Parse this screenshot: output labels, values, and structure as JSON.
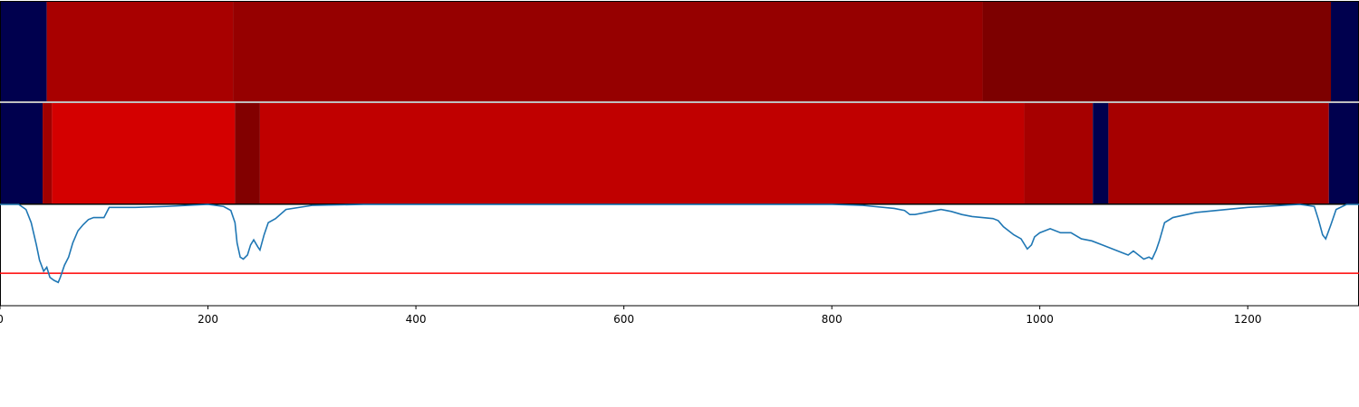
{
  "chart_data": {
    "type": "heatmap",
    "xlim": [
      0,
      1307
    ],
    "x_ticks": [
      "0",
      "200",
      "400",
      "600",
      "800",
      "1000",
      "1200"
    ],
    "x_tick_values": [
      0,
      200,
      400,
      600,
      800,
      1000,
      1200
    ],
    "colors": {
      "background_segment": "#00004e",
      "top_a": "#a80000",
      "top_b": "#960000",
      "top_c": "#7d0000",
      "mid_a": "#d40000",
      "mid_b": "#c00000",
      "mid_c": "#a60000",
      "mid_dark": "#820000",
      "line": "#1f77b4",
      "threshold": "#ff0000"
    },
    "bands": [
      {
        "segments": [
          {
            "x0": 0,
            "x1": 45,
            "color": "#00004e"
          },
          {
            "x0": 45,
            "x1": 224,
            "color": "#a80000"
          },
          {
            "x0": 224,
            "x1": 945,
            "color": "#960000"
          },
          {
            "x0": 945,
            "x1": 1280,
            "color": "#7d0000"
          },
          {
            "x0": 1280,
            "x1": 1307,
            "color": "#00004e"
          }
        ]
      },
      {
        "segments": [
          {
            "x0": 0,
            "x1": 41,
            "color": "#00004e"
          },
          {
            "x0": 41,
            "x1": 50,
            "color": "#a00000"
          },
          {
            "x0": 50,
            "x1": 226,
            "color": "#d40000"
          },
          {
            "x0": 226,
            "x1": 250,
            "color": "#820000"
          },
          {
            "x0": 250,
            "x1": 985,
            "color": "#c00000"
          },
          {
            "x0": 985,
            "x1": 1051,
            "color": "#a60000"
          },
          {
            "x0": 1051,
            "x1": 1066,
            "color": "#00004e"
          },
          {
            "x0": 1066,
            "x1": 1278,
            "color": "#a60000"
          },
          {
            "x0": 1278,
            "x1": 1307,
            "color": "#00004e"
          }
        ]
      }
    ],
    "line_series": {
      "ylim": [
        0,
        1
      ],
      "threshold": 0.32,
      "points": [
        [
          0,
          1.0
        ],
        [
          18,
          1.0
        ],
        [
          25,
          0.95
        ],
        [
          30,
          0.82
        ],
        [
          35,
          0.6
        ],
        [
          38,
          0.45
        ],
        [
          42,
          0.34
        ],
        [
          45,
          0.38
        ],
        [
          48,
          0.28
        ],
        [
          52,
          0.25
        ],
        [
          56,
          0.23
        ],
        [
          58,
          0.28
        ],
        [
          62,
          0.4
        ],
        [
          66,
          0.48
        ],
        [
          70,
          0.62
        ],
        [
          75,
          0.74
        ],
        [
          80,
          0.8
        ],
        [
          85,
          0.85
        ],
        [
          90,
          0.87
        ],
        [
          100,
          0.87
        ],
        [
          105,
          0.97
        ],
        [
          130,
          0.97
        ],
        [
          160,
          0.98
        ],
        [
          200,
          1.0
        ],
        [
          215,
          0.98
        ],
        [
          222,
          0.94
        ],
        [
          226,
          0.82
        ],
        [
          228,
          0.62
        ],
        [
          231,
          0.48
        ],
        [
          234,
          0.46
        ],
        [
          238,
          0.5
        ],
        [
          241,
          0.6
        ],
        [
          244,
          0.65
        ],
        [
          248,
          0.58
        ],
        [
          250,
          0.55
        ],
        [
          254,
          0.7
        ],
        [
          258,
          0.82
        ],
        [
          265,
          0.86
        ],
        [
          275,
          0.95
        ],
        [
          300,
          0.99
        ],
        [
          350,
          1.0
        ],
        [
          800,
          1.0
        ],
        [
          830,
          0.99
        ],
        [
          860,
          0.96
        ],
        [
          870,
          0.94
        ],
        [
          875,
          0.9
        ],
        [
          880,
          0.9
        ],
        [
          890,
          0.92
        ],
        [
          905,
          0.95
        ],
        [
          915,
          0.93
        ],
        [
          925,
          0.9
        ],
        [
          935,
          0.88
        ],
        [
          945,
          0.87
        ],
        [
          955,
          0.86
        ],
        [
          960,
          0.84
        ],
        [
          965,
          0.78
        ],
        [
          975,
          0.7
        ],
        [
          982,
          0.66
        ],
        [
          988,
          0.56
        ],
        [
          992,
          0.6
        ],
        [
          995,
          0.68
        ],
        [
          1000,
          0.72
        ],
        [
          1010,
          0.76
        ],
        [
          1020,
          0.72
        ],
        [
          1030,
          0.72
        ],
        [
          1040,
          0.66
        ],
        [
          1050,
          0.64
        ],
        [
          1060,
          0.6
        ],
        [
          1070,
          0.56
        ],
        [
          1080,
          0.52
        ],
        [
          1085,
          0.5
        ],
        [
          1090,
          0.54
        ],
        [
          1100,
          0.46
        ],
        [
          1105,
          0.48
        ],
        [
          1108,
          0.46
        ],
        [
          1112,
          0.55
        ],
        [
          1115,
          0.64
        ],
        [
          1120,
          0.82
        ],
        [
          1128,
          0.87
        ],
        [
          1150,
          0.92
        ],
        [
          1200,
          0.97
        ],
        [
          1250,
          1.0
        ],
        [
          1264,
          0.98
        ],
        [
          1268,
          0.85
        ],
        [
          1272,
          0.7
        ],
        [
          1275,
          0.66
        ],
        [
          1280,
          0.8
        ],
        [
          1285,
          0.95
        ],
        [
          1295,
          1.0
        ],
        [
          1307,
          1.0
        ]
      ]
    }
  }
}
